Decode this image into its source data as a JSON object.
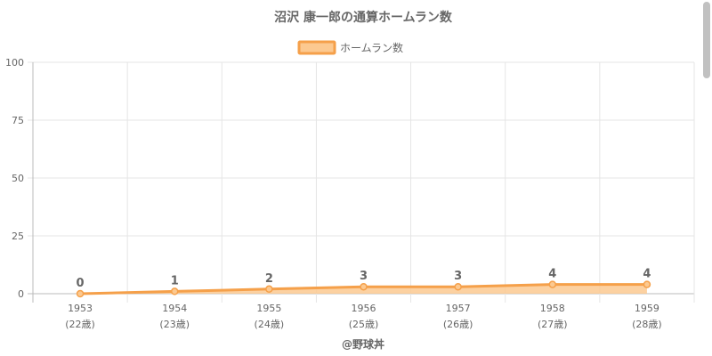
{
  "chart_data": {
    "type": "line",
    "title": "沼沢 康一郎の通算ホームラン数",
    "categories": [
      "1953",
      "1954",
      "1955",
      "1956",
      "1957",
      "1958",
      "1959"
    ],
    "category_sublabels": [
      "(22歳)",
      "(23歳)",
      "(24歳)",
      "(25歳)",
      "(26歳)",
      "(27歳)",
      "(28歳)"
    ],
    "series": [
      {
        "name": "ホームラン数",
        "values": [
          0,
          1,
          2,
          3,
          3,
          4,
          4
        ]
      }
    ],
    "ylim": [
      0,
      100
    ],
    "yticks": [
      "0",
      "25",
      "50",
      "75",
      "100"
    ],
    "grid": true,
    "area_fill": true,
    "legend_position": "top",
    "line_color": "#f5a04a",
    "fill_color": "#fcc990",
    "footer": "@野球丼"
  }
}
